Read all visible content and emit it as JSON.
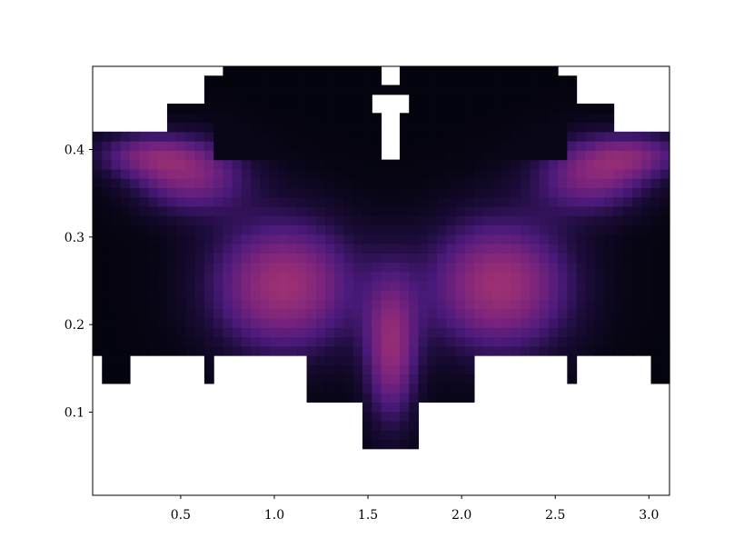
{
  "chart_data": {
    "type": "heatmap",
    "title": "",
    "xlabel": "",
    "ylabel": "",
    "xlim": [
      0.03,
      3.11
    ],
    "ylim": [
      0.005,
      0.495
    ],
    "grid": false,
    "colormap": "magma",
    "colorbar": false,
    "empty_cell_color": "#ffffff",
    "x_ticks": [
      0.5,
      1.0,
      1.5,
      2.0,
      2.5,
      3.0
    ],
    "x_tick_labels": [
      "0.5",
      "1.0",
      "1.5",
      "2.0",
      "2.5",
      "3.0"
    ],
    "y_ticks": [
      0.1,
      0.2,
      0.3,
      0.4
    ],
    "y_tick_labels": [
      "0.1",
      "0.2",
      "0.3",
      "0.4"
    ],
    "n_cols": 62,
    "n_rows": 46,
    "colors": {
      "low": "#040410",
      "mid": "#4a1a7a",
      "high": "#9a2f74",
      "axes": "#000000"
    }
  }
}
